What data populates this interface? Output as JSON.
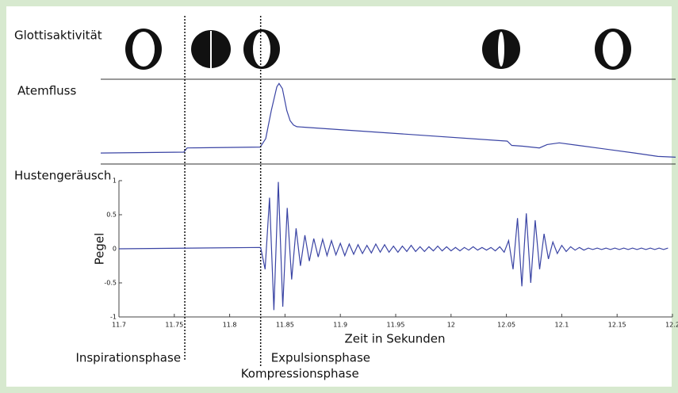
{
  "glottis_label": "Glottisaktivität",
  "chart_data": [
    {
      "type": "line",
      "title": "Atemfluss",
      "color": "#3a44a4",
      "xlim": [
        11.684,
        12.203
      ],
      "ylim": [
        0,
        1
      ],
      "x": [
        11.684,
        11.759,
        11.762,
        11.828,
        11.833,
        11.838,
        11.843,
        11.845,
        11.848,
        11.852,
        11.855,
        11.858,
        11.861,
        12.051,
        12.055,
        12.065,
        12.08,
        12.087,
        12.098,
        12.115,
        12.166,
        12.187,
        12.203
      ],
      "values": [
        0.13,
        0.14,
        0.19,
        0.2,
        0.3,
        0.63,
        0.91,
        0.95,
        0.89,
        0.63,
        0.51,
        0.46,
        0.44,
        0.27,
        0.22,
        0.21,
        0.19,
        0.23,
        0.25,
        0.22,
        0.13,
        0.09,
        0.08
      ]
    },
    {
      "type": "line",
      "title": "Hustengeräusch",
      "ylabel": "Pegel",
      "xlabel": "Zeit in Sekunden",
      "color": "#3a44a4",
      "xlim": [
        11.7,
        12.2
      ],
      "ylim": [
        -1,
        1
      ],
      "xticks": [
        11.7,
        11.75,
        11.8,
        11.85,
        11.9,
        11.95,
        12,
        12.05,
        12.1,
        12.15,
        12.2
      ],
      "yticks": [
        -1,
        -0.5,
        0,
        0.5,
        1
      ],
      "annotations": [
        {
          "label": "Inspirationsphase",
          "x": 11.7595
        },
        {
          "label": "Kompressionsphase",
          "x": 11.828
        },
        {
          "label": "Expulsionsphase",
          "x": 11.828
        }
      ],
      "x": [
        11.7,
        11.828,
        11.832,
        11.836,
        11.84,
        11.844,
        11.848,
        11.852,
        11.856,
        11.86,
        11.864,
        11.868,
        11.872,
        11.876,
        11.88,
        11.884,
        11.888,
        11.892,
        11.896,
        11.9,
        11.904,
        11.908,
        11.912,
        11.916,
        11.92,
        11.924,
        11.928,
        11.932,
        11.936,
        11.94,
        11.944,
        11.948,
        11.952,
        11.956,
        11.96,
        11.964,
        11.968,
        11.972,
        11.976,
        11.98,
        11.984,
        11.988,
        11.992,
        11.996,
        12,
        12.004,
        12.008,
        12.012,
        12.016,
        12.02,
        12.024,
        12.028,
        12.032,
        12.036,
        12.04,
        12.044,
        12.048,
        12.052,
        12.056,
        12.06,
        12.064,
        12.068,
        12.072,
        12.076,
        12.08,
        12.084,
        12.088,
        12.092,
        12.096,
        12.1,
        12.104,
        12.108,
        12.112,
        12.116,
        12.12,
        12.124,
        12.128,
        12.132,
        12.136,
        12.14,
        12.144,
        12.148,
        12.152,
        12.156,
        12.16,
        12.164,
        12.168,
        12.172,
        12.176,
        12.18,
        12.184,
        12.188,
        12.192,
        12.196
      ],
      "values": [
        0,
        0.02,
        -0.3,
        0.75,
        -0.9,
        0.98,
        -0.85,
        0.6,
        -0.45,
        0.3,
        -0.25,
        0.2,
        -0.18,
        0.15,
        -0.12,
        0.14,
        -0.1,
        0.12,
        -0.09,
        0.08,
        -0.1,
        0.07,
        -0.08,
        0.06,
        -0.07,
        0.05,
        -0.06,
        0.07,
        -0.05,
        0.06,
        -0.05,
        0.04,
        -0.05,
        0.04,
        -0.04,
        0.05,
        -0.04,
        0.03,
        -0.04,
        0.03,
        -0.03,
        0.04,
        -0.03,
        0.03,
        -0.03,
        0.02,
        -0.03,
        0.02,
        -0.02,
        0.03,
        -0.02,
        0.02,
        -0.02,
        0.02,
        -0.03,
        0.03,
        -0.05,
        0.12,
        -0.3,
        0.45,
        -0.55,
        0.52,
        -0.5,
        0.42,
        -0.3,
        0.22,
        -0.15,
        0.1,
        -0.07,
        0.05,
        -0.04,
        0.03,
        -0.02,
        0.02,
        -0.02,
        0.01,
        -0.01,
        0.01,
        -0.01,
        0.01,
        -0.01,
        0.01,
        -0.01,
        0.01,
        -0.01,
        0.01,
        -0.01,
        0.01,
        -0.01,
        0.01,
        -0.01,
        0.01,
        -0.01,
        0.01
      ]
    }
  ]
}
